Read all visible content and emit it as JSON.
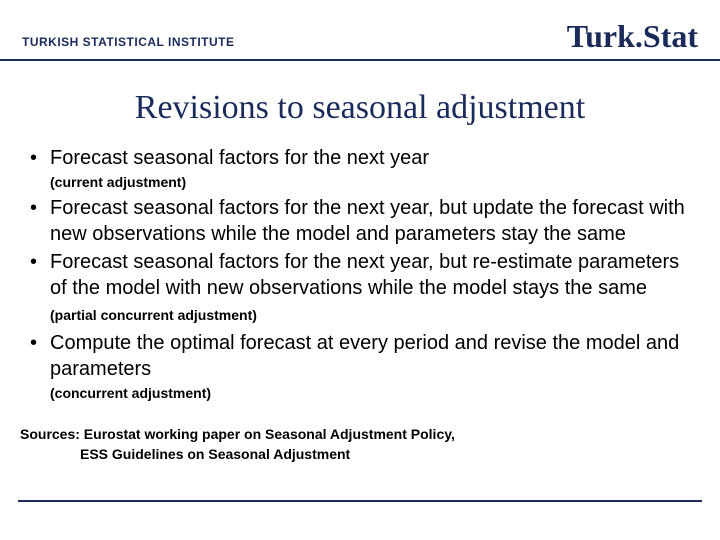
{
  "header": {
    "institute": "TURKISH STATISTICAL INSTITUTE",
    "logo": "Turk.Stat"
  },
  "title": "Revisions to seasonal adjustment",
  "bullets": {
    "b1": "Forecast seasonal factors for the next year",
    "b1_note": "(current adjustment)",
    "b2": "Forecast seasonal factors for the next year, but update the forecast with new observations while the model and parameters stay the same",
    "b3a": "Forecast seasonal factors for the next year, but re-estimate parameters of the model with new observations while the model stays the same ",
    "b3b": "(partial concurrent adjustment)",
    "b4": "Compute the optimal forecast at every period and revise the model and parameters",
    "b4_note": "(concurrent adjustment)"
  },
  "sources": {
    "line1": "Sources: Eurostat working paper on Seasonal Adjustment Policy,",
    "line2": "ESS Guidelines on Seasonal Adjustment"
  },
  "colors": {
    "brand": "#1a2a5a",
    "text": "#000000",
    "background": "#ffffff"
  }
}
